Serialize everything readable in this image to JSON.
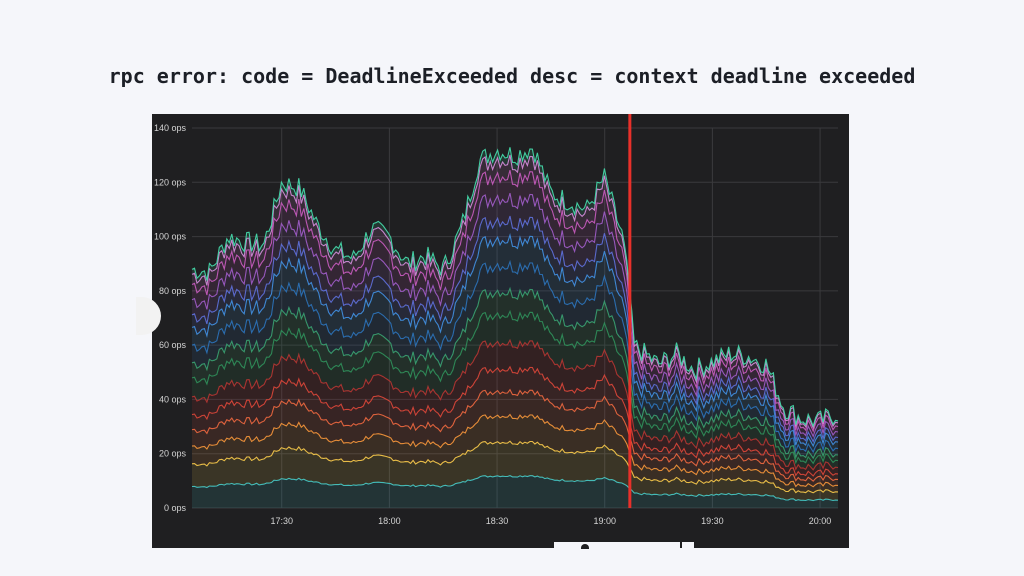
{
  "title": "rpc error: code = DeadlineExceeded desc = context deadline exceeded",
  "chart_data": {
    "type": "area",
    "stacked": true,
    "grid": true,
    "legend": "none",
    "y_tick_labels": [
      "0 ops",
      "20 ops",
      "40 ops",
      "60 ops",
      "80 ops",
      "100 ops",
      "120 ops",
      "140 ops"
    ],
    "ylim": [
      0,
      140
    ],
    "x_tick_labels": [
      "17:30",
      "18:00",
      "18:30",
      "19:00",
      "19:30",
      "20:00"
    ],
    "xlim": [
      "17:05",
      "20:05"
    ],
    "event_marker": {
      "time": "19:07",
      "color": "#e8302a"
    },
    "colors": {
      "bg": "#1f1f21",
      "grid": "#3a3a3d",
      "series": [
        "#3cc3c7",
        "#f2c84b",
        "#f0963a",
        "#e8683f",
        "#d8483a",
        "#b83030",
        "#2e8b57",
        "#3aa06a",
        "#2b6fb3",
        "#3f8fdc",
        "#5a6fd6",
        "#9a5cc4",
        "#c257b8",
        "#d884d8",
        "#45d6a8"
      ]
    },
    "time": [
      "17:05",
      "17:10",
      "17:15",
      "17:20",
      "17:25",
      "17:30",
      "17:35",
      "17:40",
      "17:45",
      "17:50",
      "17:55",
      "18:00",
      "18:05",
      "18:10",
      "18:15",
      "18:20",
      "18:25",
      "18:30",
      "18:35",
      "18:40",
      "18:45",
      "18:50",
      "18:55",
      "19:00",
      "19:03",
      "19:05",
      "19:07",
      "19:08",
      "19:15",
      "19:20",
      "19:25",
      "19:30",
      "19:35",
      "19:40",
      "19:45",
      "19:50",
      "19:55",
      "20:00",
      "20:05"
    ],
    "total": [
      88,
      87,
      100,
      98,
      97,
      120,
      118,
      104,
      95,
      92,
      103,
      100,
      90,
      93,
      88,
      103,
      128,
      132,
      130,
      133,
      116,
      113,
      110,
      122,
      108,
      100,
      79,
      60,
      53,
      57,
      51,
      54,
      57,
      56,
      53,
      37,
      33,
      32,
      35
    ]
  }
}
